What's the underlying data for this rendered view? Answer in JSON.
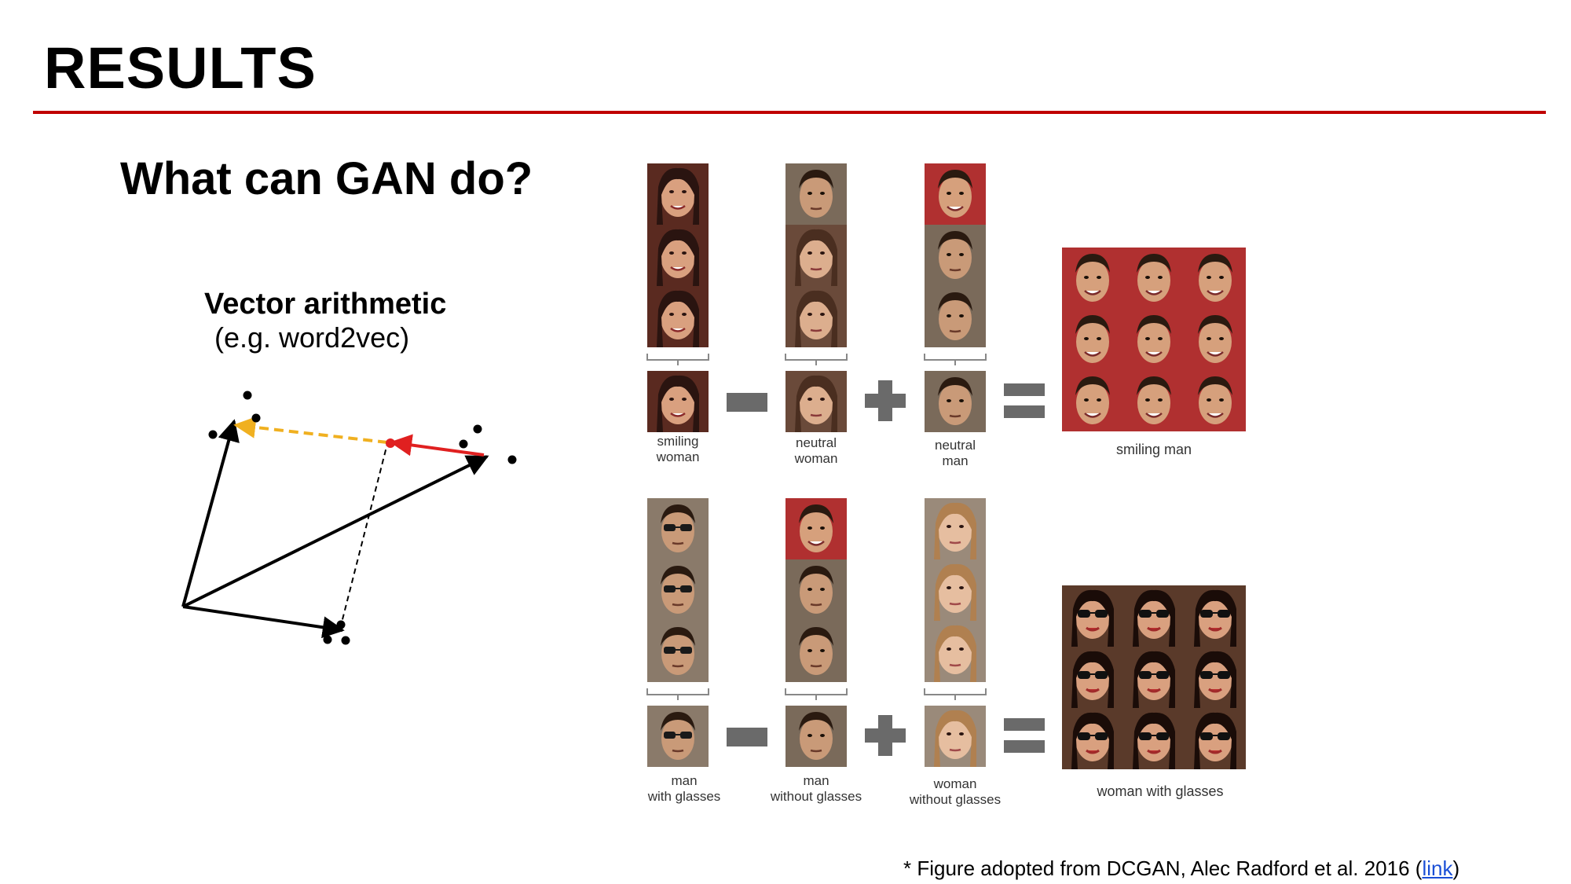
{
  "slide": {
    "title": "RESULTS",
    "subtitle": "What can GAN do?",
    "accent_color": "#c00000"
  },
  "vector_arithmetic": {
    "title": "Vector arithmetic",
    "subtitle": "(e.g. word2vec)",
    "colors": {
      "arrows": "#000000",
      "red_arrow": "#e02020",
      "dashed_result": "#f0b020"
    }
  },
  "equations": [
    {
      "terms": [
        {
          "caption_line1": "smiling",
          "caption_line2": "woman"
        },
        {
          "caption_line1": "neutral",
          "caption_line2": "woman"
        },
        {
          "caption_line1": "neutral",
          "caption_line2": "man"
        }
      ],
      "operators": [
        "-",
        "+",
        "="
      ],
      "result_caption": "smiling man"
    },
    {
      "terms": [
        {
          "caption_line1": "man",
          "caption_line2": "with glasses"
        },
        {
          "caption_line1": "man",
          "caption_line2": "without glasses"
        },
        {
          "caption_line1": "woman",
          "caption_line2": "without glasses"
        }
      ],
      "operators": [
        "-",
        "+",
        "="
      ],
      "result_caption": "woman with glasses"
    }
  ],
  "footnote": {
    "prefix": "* Figure adopted from DCGAN, Alec Radford et al. 2016 (",
    "link_text": "link",
    "suffix": ")"
  }
}
